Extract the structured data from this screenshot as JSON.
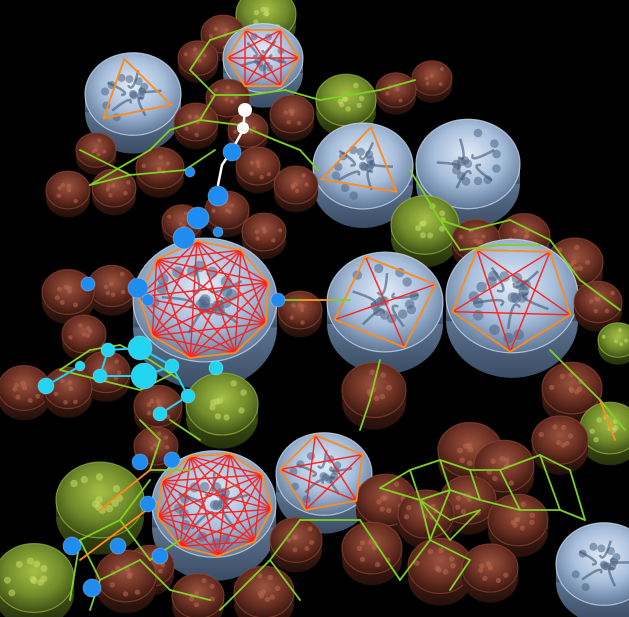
{
  "scene": {
    "background": "#000000",
    "colors": {
      "rock_fill": "#6a2f22",
      "rock_rim": "#8a4533",
      "rock_dark": "#3a1710",
      "moss_fill": "#6f8a2a",
      "moss_rim": "#9ab63e",
      "moss_dark": "#3d4f14",
      "ice_fill": "#a7bedb",
      "ice_rim": "#d6e4f3",
      "ice_dark": "#5f7898",
      "edge_red": "#ff2020",
      "edge_orange": "#ff8c1a",
      "edge_green": "#7fd21e",
      "path_blue": "#1e8cf0",
      "path_cyan": "#22d4f0",
      "path_white": "#ffffff"
    }
  }
}
